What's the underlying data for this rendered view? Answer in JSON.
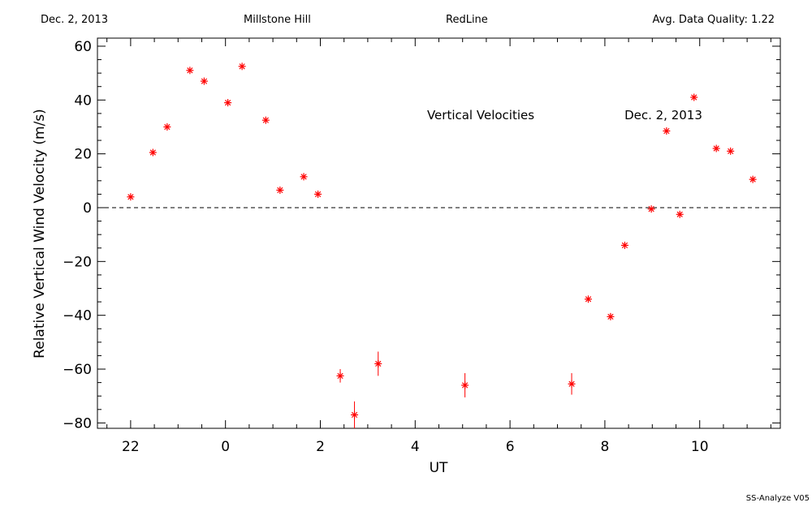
{
  "header": {
    "date": "Dec. 2, 2013",
    "site": "Millstone Hill",
    "filter": "RedLine",
    "quality": "Avg. Data Quality: 1.22"
  },
  "footer": "SS-Analyze V05",
  "chart_data": {
    "type": "scatter",
    "annotations": [
      "Vertical Velocities",
      "Dec. 2, 2013"
    ],
    "xlabel": "UT",
    "ylabel": "Relative Vertical Wind Velocity (m/s)",
    "xlim": [
      21.3,
      35.7
    ],
    "ylim": [
      -82,
      63
    ],
    "x_tick_values": [
      22,
      24,
      26,
      28,
      30,
      32,
      34
    ],
    "x_tick_labels": [
      "22",
      "0",
      "2",
      "4",
      "6",
      "8",
      "10"
    ],
    "y_ticks": [
      -80,
      -60,
      -40,
      -20,
      0,
      20,
      40,
      60
    ],
    "zero_line": true,
    "marker_color": "#ff0000",
    "marker": "asterisk",
    "series": [
      {
        "points": [
          {
            "x": 22.0,
            "y": 4,
            "err": 0
          },
          {
            "x": 22.47,
            "y": 20.5,
            "err": 0
          },
          {
            "x": 22.77,
            "y": 30,
            "err": 0
          },
          {
            "x": 23.25,
            "y": 51,
            "err": 0
          },
          {
            "x": 23.55,
            "y": 47,
            "err": 0
          },
          {
            "x": 24.05,
            "y": 39,
            "err": 0
          },
          {
            "x": 24.35,
            "y": 52.5,
            "err": 0
          },
          {
            "x": 24.85,
            "y": 32.5,
            "err": 0
          },
          {
            "x": 25.15,
            "y": 6.5,
            "err": 0
          },
          {
            "x": 25.65,
            "y": 11.5,
            "err": 0
          },
          {
            "x": 25.95,
            "y": 5,
            "err": 0
          },
          {
            "x": 26.42,
            "y": -62.5,
            "err": 2.5
          },
          {
            "x": 26.72,
            "y": -77,
            "err": 5
          },
          {
            "x": 27.22,
            "y": -58,
            "err": 4.5
          },
          {
            "x": 29.05,
            "y": -66,
            "err": 4.5
          },
          {
            "x": 31.3,
            "y": -65.5,
            "err": 4
          },
          {
            "x": 31.65,
            "y": -34,
            "err": 0
          },
          {
            "x": 32.12,
            "y": -40.5,
            "err": 0
          },
          {
            "x": 32.42,
            "y": -14,
            "err": 0
          },
          {
            "x": 32.98,
            "y": -0.5,
            "err": 0
          },
          {
            "x": 33.3,
            "y": 28.5,
            "err": 0
          },
          {
            "x": 33.58,
            "y": -2.5,
            "err": 0
          },
          {
            "x": 33.88,
            "y": 41,
            "err": 0
          },
          {
            "x": 34.35,
            "y": 22,
            "err": 0
          },
          {
            "x": 34.65,
            "y": 21,
            "err": 0
          },
          {
            "x": 35.12,
            "y": 10.5,
            "err": 0
          }
        ]
      }
    ]
  }
}
